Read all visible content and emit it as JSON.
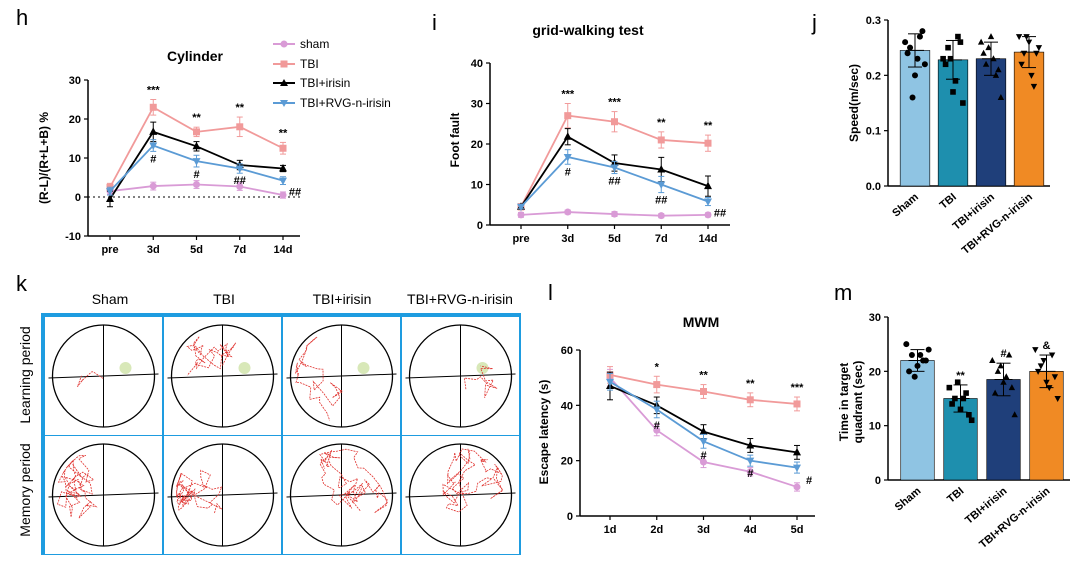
{
  "panels": {
    "h": {
      "letter": "h",
      "title": "Cylinder",
      "ylabel": "(R-L)/(R+L+B) %",
      "categories": [
        "pre",
        "3d",
        "5d",
        "7d",
        "14d"
      ],
      "yticks": [
        "-10",
        "0",
        "10",
        "20",
        "30"
      ]
    },
    "i": {
      "letter": "i",
      "title": "grid-walking test",
      "ylabel": "Foot fault",
      "categories": [
        "pre",
        "3d",
        "5d",
        "7d",
        "14d"
      ],
      "yticks": [
        "0",
        "10",
        "20",
        "30",
        "40"
      ]
    },
    "j": {
      "letter": "j",
      "ylabel": "Speed(m/sec)",
      "categories": [
        "Sham",
        "TBI",
        "TBI+irisin",
        "TBI+RVG-n-irisin"
      ],
      "yticks": [
        "0.0",
        "0.1",
        "0.2",
        "0.3"
      ]
    },
    "k": {
      "letter": "k",
      "columns": [
        "Sham",
        "TBI",
        "TBI+irisin",
        "TBI+RVG-n-irisin"
      ],
      "rows": [
        "Learning period",
        "Memory period"
      ]
    },
    "l": {
      "letter": "l",
      "title": "MWM",
      "ylabel": "Escape latency (s)",
      "categories": [
        "1d",
        "2d",
        "3d",
        "4d",
        "5d"
      ],
      "yticks": [
        "0",
        "20",
        "40",
        "60"
      ]
    },
    "m": {
      "letter": "m",
      "ylabel": "Time in target quadrant (sec)",
      "ylabel_lines": [
        "Time in target",
        "quadrant (sec)"
      ],
      "categories": [
        "Sham",
        "TBI",
        "TBI+irisin",
        "TBI+RVG-n-irisin"
      ],
      "yticks": [
        "0",
        "10",
        "20",
        "30"
      ]
    }
  },
  "legend": [
    {
      "name": "sham",
      "color": "#D99BD6",
      "marker": "circle"
    },
    {
      "name": "TBI",
      "color": "#F19A9A",
      "marker": "square"
    },
    {
      "name": "TBI+irisin",
      "color": "#000000",
      "marker": "triangle-up"
    },
    {
      "name": "TBI+RVG-n-irisin",
      "color": "#5B9BD5",
      "marker": "triangle-down"
    }
  ],
  "chart_data": [
    {
      "id": "h",
      "type": "line",
      "title": "Cylinder",
      "ylabel": "(R-L)/(R+L+B) %",
      "ylim": [
        -10,
        30
      ],
      "categories": [
        "pre",
        "3d",
        "5d",
        "7d",
        "14d"
      ],
      "series": [
        {
          "name": "sham",
          "values": [
            1.5,
            2.8,
            3.2,
            2.7,
            0.5
          ],
          "errors": [
            0.8,
            1.0,
            1.0,
            1.0,
            0.8
          ]
        },
        {
          "name": "TBI",
          "values": [
            2.5,
            23,
            16.7,
            18,
            12.5
          ],
          "errors": [
            1.0,
            2.0,
            1.2,
            2.5,
            1.5
          ]
        },
        {
          "name": "TBI+irisin",
          "values": [
            -0.5,
            16.7,
            13,
            8.2,
            7.3
          ],
          "errors": [
            2.0,
            2.5,
            1.2,
            1.2,
            0.8
          ]
        },
        {
          "name": "TBI+RVG-n-irisin",
          "values": [
            1.5,
            13.2,
            9.2,
            7.3,
            4.2
          ],
          "errors": [
            1.0,
            1.5,
            1.5,
            1.2,
            1.0
          ]
        }
      ],
      "annotations": [
        {
          "x": "3d",
          "texts": [
            "***",
            "#"
          ]
        },
        {
          "x": "5d",
          "texts": [
            "**",
            "#"
          ]
        },
        {
          "x": "7d",
          "texts": [
            "**",
            "##"
          ]
        },
        {
          "x": "14d",
          "texts": [
            "**",
            "##"
          ]
        }
      ]
    },
    {
      "id": "i",
      "type": "line",
      "title": "grid-walking test",
      "ylabel": "Foot fault",
      "ylim": [
        0,
        40
      ],
      "categories": [
        "pre",
        "3d",
        "5d",
        "7d",
        "14d"
      ],
      "series": [
        {
          "name": "sham",
          "values": [
            2.5,
            3.2,
            2.7,
            2.3,
            2.5
          ],
          "errors": [
            0.6,
            0.5,
            0.6,
            0.5,
            0.5
          ]
        },
        {
          "name": "TBI",
          "values": [
            4.5,
            27,
            25.5,
            21,
            20.2
          ],
          "errors": [
            0.8,
            3.0,
            2.5,
            2.0,
            2.0
          ]
        },
        {
          "name": "TBI+irisin",
          "values": [
            4.5,
            21.8,
            15.3,
            13.7,
            9.6
          ],
          "errors": [
            0.5,
            2.0,
            2.0,
            3.0,
            2.5
          ]
        },
        {
          "name": "TBI+RVG-n-irisin",
          "values": [
            4.5,
            16.8,
            14.2,
            10,
            5.8
          ],
          "errors": [
            0.5,
            1.8,
            1.5,
            2.0,
            1.0
          ]
        }
      ],
      "annotations": [
        {
          "x": "3d",
          "texts": [
            "***",
            "#"
          ]
        },
        {
          "x": "5d",
          "texts": [
            "***",
            "##"
          ]
        },
        {
          "x": "7d",
          "texts": [
            "**",
            "##"
          ]
        },
        {
          "x": "14d",
          "texts": [
            "**",
            "##"
          ]
        }
      ]
    },
    {
      "id": "j",
      "type": "bar",
      "ylabel": "Speed(m/sec)",
      "ylim": [
        0,
        0.3
      ],
      "categories": [
        "Sham",
        "TBI",
        "TBI+irisin",
        "TBI+RVG-n-irisin"
      ],
      "values": [
        0.245,
        0.228,
        0.23,
        0.242
      ],
      "errors": [
        0.03,
        0.035,
        0.03,
        0.028
      ],
      "colors": [
        "#8FC4E3",
        "#1E8FAE",
        "#1F3F7A",
        "#F08A24"
      ],
      "points": [
        [
          0.26,
          0.25,
          0.2,
          0.27,
          0.22,
          0.24,
          0.16,
          0.23,
          0.28
        ],
        [
          0.23,
          0.25,
          0.17,
          0.27,
          0.15,
          0.22,
          0.23,
          0.19,
          0.26
        ],
        [
          0.26,
          0.22,
          0.27,
          0.2,
          0.16,
          0.24,
          0.25,
          0.23,
          0.21
        ],
        [
          0.27,
          0.24,
          0.26,
          0.18,
          0.25,
          0.22,
          0.27,
          0.2,
          0.24
        ]
      ]
    },
    {
      "id": "l",
      "type": "line",
      "title": "MWM",
      "ylabel": "Escape latency (s)",
      "ylim": [
        0,
        60
      ],
      "categories": [
        "1d",
        "2d",
        "3d",
        "4d",
        "5d"
      ],
      "series": [
        {
          "name": "sham",
          "values": [
            50,
            31,
            19.5,
            16,
            10.5
          ],
          "errors": [
            3,
            2,
            2,
            1.5,
            1.5
          ]
        },
        {
          "name": "TBI",
          "values": [
            51,
            47.5,
            45,
            42,
            40.5
          ],
          "errors": [
            3,
            3,
            2.5,
            2.5,
            2.5
          ]
        },
        {
          "name": "TBI+irisin",
          "values": [
            47,
            40,
            30.5,
            25.5,
            23
          ],
          "errors": [
            5,
            3,
            2.5,
            2.5,
            2.5
          ]
        },
        {
          "name": "TBI+RVG-n-irisin",
          "values": [
            48.5,
            38.5,
            27,
            20,
            17.5
          ],
          "errors": [
            3,
            3,
            2.5,
            2,
            2
          ]
        }
      ],
      "annotations": [
        {
          "x": "2d",
          "texts": [
            "*",
            "#"
          ]
        },
        {
          "x": "3d",
          "texts": [
            "**",
            "#"
          ]
        },
        {
          "x": "4d",
          "texts": [
            "**",
            "#"
          ]
        },
        {
          "x": "5d",
          "texts": [
            "***",
            "#"
          ]
        }
      ]
    },
    {
      "id": "m",
      "type": "bar",
      "ylabel": "Time in target quadrant (sec)",
      "ylim": [
        0,
        30
      ],
      "categories": [
        "Sham",
        "TBI",
        "TBI+irisin",
        "TBI+RVG-n-irisin"
      ],
      "values": [
        22,
        15,
        18.5,
        20
      ],
      "errors": [
        2,
        2.5,
        3,
        3
      ],
      "colors": [
        "#8FC4E3",
        "#1E8FAE",
        "#1F3F7A",
        "#F08A24"
      ],
      "significance": [
        "",
        "**",
        "#",
        "&"
      ],
      "points": [
        [
          25,
          23,
          21,
          22,
          24,
          20,
          19,
          23,
          22
        ],
        [
          17,
          15,
          13,
          16,
          11,
          14,
          18,
          15,
          12
        ],
        [
          22,
          20,
          18,
          23,
          12,
          16,
          21,
          19,
          17
        ],
        [
          24,
          21,
          18,
          23,
          15,
          20,
          22,
          17,
          19
        ]
      ]
    }
  ]
}
